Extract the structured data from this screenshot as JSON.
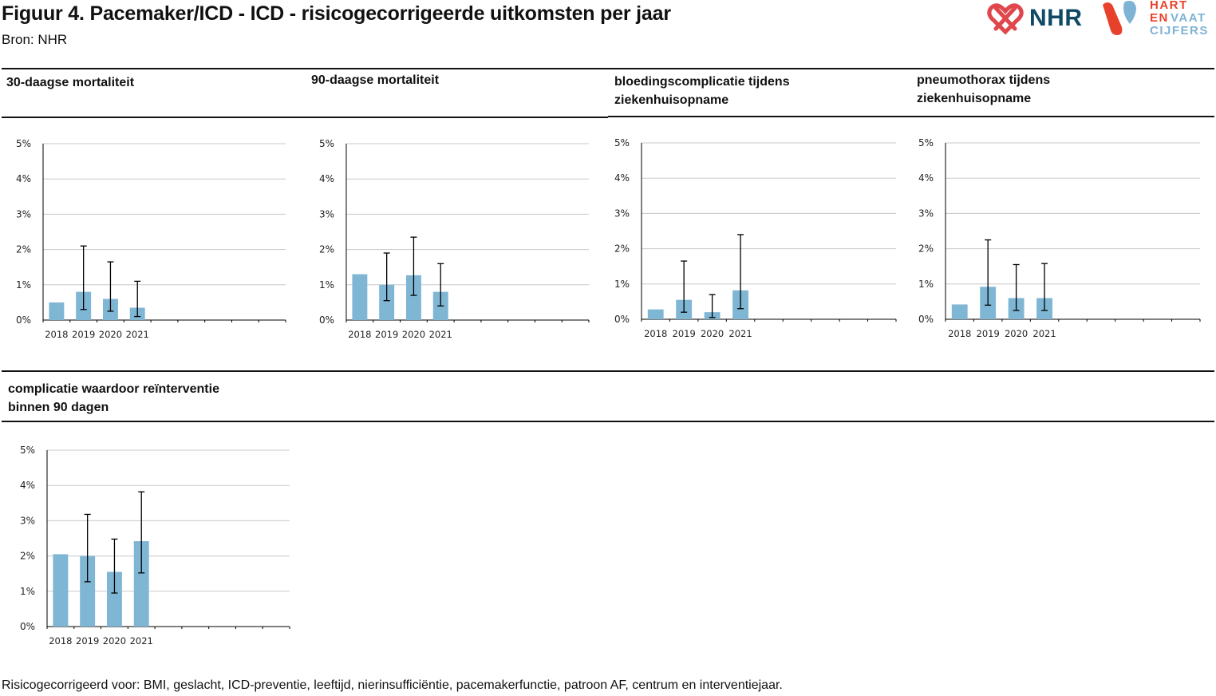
{
  "header": {
    "title": "Figuur 4. Pacemaker/ICD - ICD - risicogecorrigeerde uitkomsten per jaar",
    "source": "Bron: NHR"
  },
  "logos": {
    "nhr": "NHR",
    "hartenvaat": [
      "HART",
      "EN",
      "VAAT",
      "CIJFERS"
    ]
  },
  "colors": {
    "bar": "#7eb6d4",
    "grid": "#c8c8c8",
    "nhr_red": "#e0474c",
    "nhr_blue": "#0e4a66",
    "hvc_red": "#e8412b",
    "hvc_blue": "#7fb3d5"
  },
  "panels": [
    {
      "title": [
        "30-daagse mortaliteit"
      ]
    },
    {
      "title": [
        "90-daagse mortaliteit"
      ]
    },
    {
      "title": [
        "bloedingscomplicatie tijdens",
        "ziekenhuisopname"
      ]
    },
    {
      "title": [
        "pneumothorax tijdens",
        "ziekenhuisopname"
      ]
    },
    {
      "title": [
        "complicatie waardoor reïnterventie",
        "binnen 90 dagen"
      ]
    }
  ],
  "chart_data": [
    {
      "type": "bar",
      "title": "30-daagse mortaliteit",
      "categories": [
        "2018",
        "2019",
        "2020",
        "2021"
      ],
      "values": [
        0.5,
        0.8,
        0.6,
        0.35
      ],
      "error_low": [
        null,
        0.3,
        0.25,
        0.1
      ],
      "error_high": [
        null,
        2.1,
        1.65,
        1.1
      ],
      "y_ticks": [
        "0%",
        "1%",
        "2%",
        "3%",
        "4%",
        "5%"
      ],
      "ylim": [
        0,
        5
      ],
      "slots": 9,
      "grid": true
    },
    {
      "type": "bar",
      "title": "90-daagse mortaliteit",
      "categories": [
        "2018",
        "2019",
        "2020",
        "2021"
      ],
      "values": [
        1.3,
        1.0,
        1.27,
        0.8
      ],
      "error_low": [
        null,
        0.55,
        0.7,
        0.4
      ],
      "error_high": [
        null,
        1.9,
        2.35,
        1.6
      ],
      "y_ticks": [
        "0%",
        "1%",
        "2%",
        "3%",
        "4%",
        "5%"
      ],
      "ylim": [
        0,
        5
      ],
      "slots": 9,
      "grid": true
    },
    {
      "type": "bar",
      "title": "bloedingscomplicatie tijdens ziekenhuisopname",
      "categories": [
        "2018",
        "2019",
        "2020",
        "2021"
      ],
      "values": [
        0.28,
        0.55,
        0.2,
        0.82
      ],
      "error_low": [
        null,
        0.2,
        0.05,
        0.3
      ],
      "error_high": [
        null,
        1.65,
        0.7,
        2.4
      ],
      "y_ticks": [
        "0%",
        "1%",
        "2%",
        "3%",
        "4%",
        "5%"
      ],
      "ylim": [
        0,
        5
      ],
      "slots": 9,
      "grid": true
    },
    {
      "type": "bar",
      "title": "pneumothorax tijdens ziekenhuisopname",
      "categories": [
        "2018",
        "2019",
        "2020",
        "2021"
      ],
      "values": [
        0.42,
        0.92,
        0.6,
        0.6
      ],
      "error_low": [
        null,
        0.4,
        0.25,
        0.25
      ],
      "error_high": [
        null,
        2.25,
        1.55,
        1.58
      ],
      "y_ticks": [
        "0%",
        "1%",
        "2%",
        "3%",
        "4%",
        "5%"
      ],
      "ylim": [
        0,
        5
      ],
      "slots": 9,
      "grid": true
    },
    {
      "type": "bar",
      "title": "complicatie waardoor reïnterventie binnen 90 dagen",
      "categories": [
        "2018",
        "2019",
        "2020",
        "2021"
      ],
      "values": [
        2.05,
        2.0,
        1.55,
        2.42
      ],
      "error_low": [
        null,
        1.27,
        0.95,
        1.52
      ],
      "error_high": [
        null,
        3.18,
        2.48,
        3.82
      ],
      "y_ticks": [
        "0%",
        "1%",
        "2%",
        "3%",
        "4%",
        "5%"
      ],
      "ylim": [
        0,
        5
      ],
      "slots": 9,
      "grid": true
    }
  ],
  "footnote": "Risicogecorrigeerd voor: BMI, geslacht, ICD-preventie, leeftijd, nierinsufficiëntie, pacemakerfunctie, patroon AF, centrum en interventiejaar."
}
